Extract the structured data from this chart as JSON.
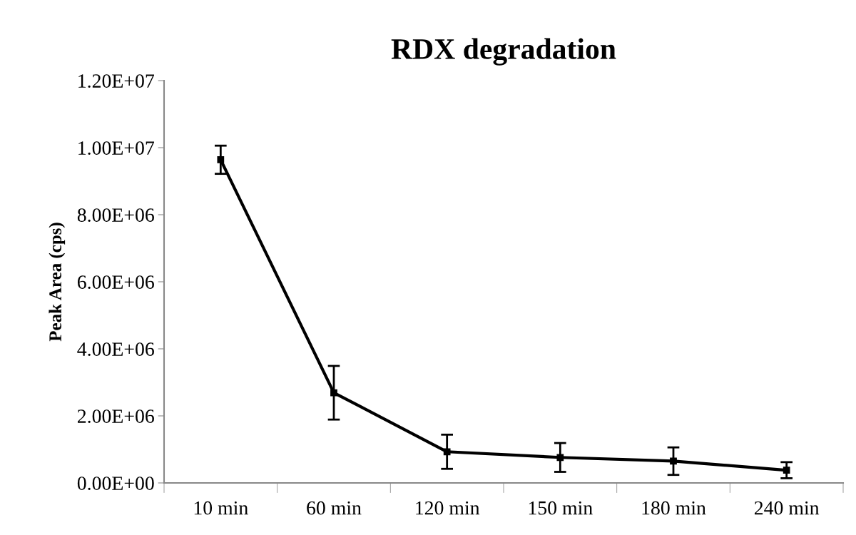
{
  "chart_data": {
    "type": "line",
    "title": "RDX degradation",
    "ylabel": "Peak Area (cps)",
    "categories": [
      "10 min",
      "60 min",
      "120 min",
      "150 min",
      "180 min",
      "240 min"
    ],
    "series": [
      {
        "color": "#000000",
        "values": [
          9640000,
          2690000,
          930000,
          760000,
          650000,
          380000
        ],
        "errors": [
          420000,
          800000,
          510000,
          430000,
          410000,
          240000
        ]
      }
    ],
    "ylim": [
      0,
      12000000
    ],
    "yticks": [
      {
        "value": 0,
        "label": "0.00E+00"
      },
      {
        "value": 2000000,
        "label": "2.00E+06"
      },
      {
        "value": 4000000,
        "label": "4.00E+06"
      },
      {
        "value": 6000000,
        "label": "6.00E+06"
      },
      {
        "value": 8000000,
        "label": "8.00E+06"
      },
      {
        "value": 10000000,
        "label": "1.00E+07"
      },
      {
        "value": 12000000,
        "label": "1.20E+07"
      }
    ],
    "marker": "square",
    "line_style": "solid",
    "grid": false,
    "legend": false
  }
}
